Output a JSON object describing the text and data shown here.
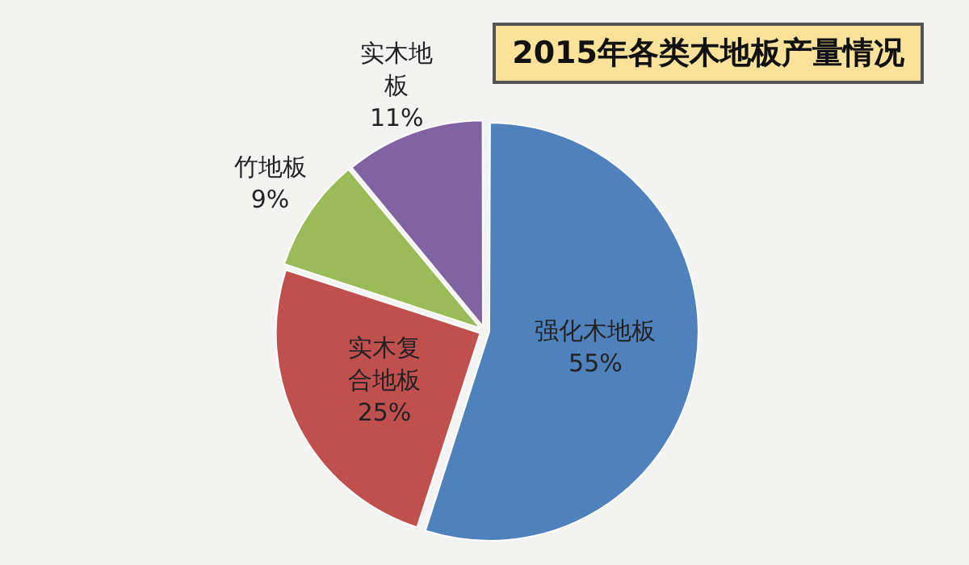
{
  "chart_data": {
    "type": "pie",
    "title": "2015年各类木地板产量情况",
    "categories": [
      "强化木地板",
      "实木复合地板",
      "竹地板",
      "实木地板"
    ],
    "values": [
      55,
      25,
      9,
      11
    ],
    "value_labels": [
      "55%",
      "25%",
      "9%",
      "11%"
    ],
    "colors": [
      "#4f81bd",
      "#c0504d",
      "#9bbb59",
      "#8064a2"
    ]
  }
}
